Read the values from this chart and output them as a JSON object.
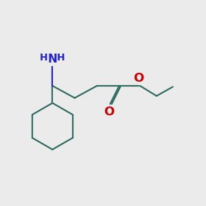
{
  "bg_color": "#ebebeb",
  "bond_color": "#2d6b5e",
  "nitrogen_color": "#2222cc",
  "oxygen_color": "#cc0000",
  "line_width": 1.6,
  "fig_size": [
    3.0,
    3.0
  ],
  "dpi": 100,
  "xlim": [
    0,
    10
  ],
  "ylim": [
    0,
    10
  ]
}
